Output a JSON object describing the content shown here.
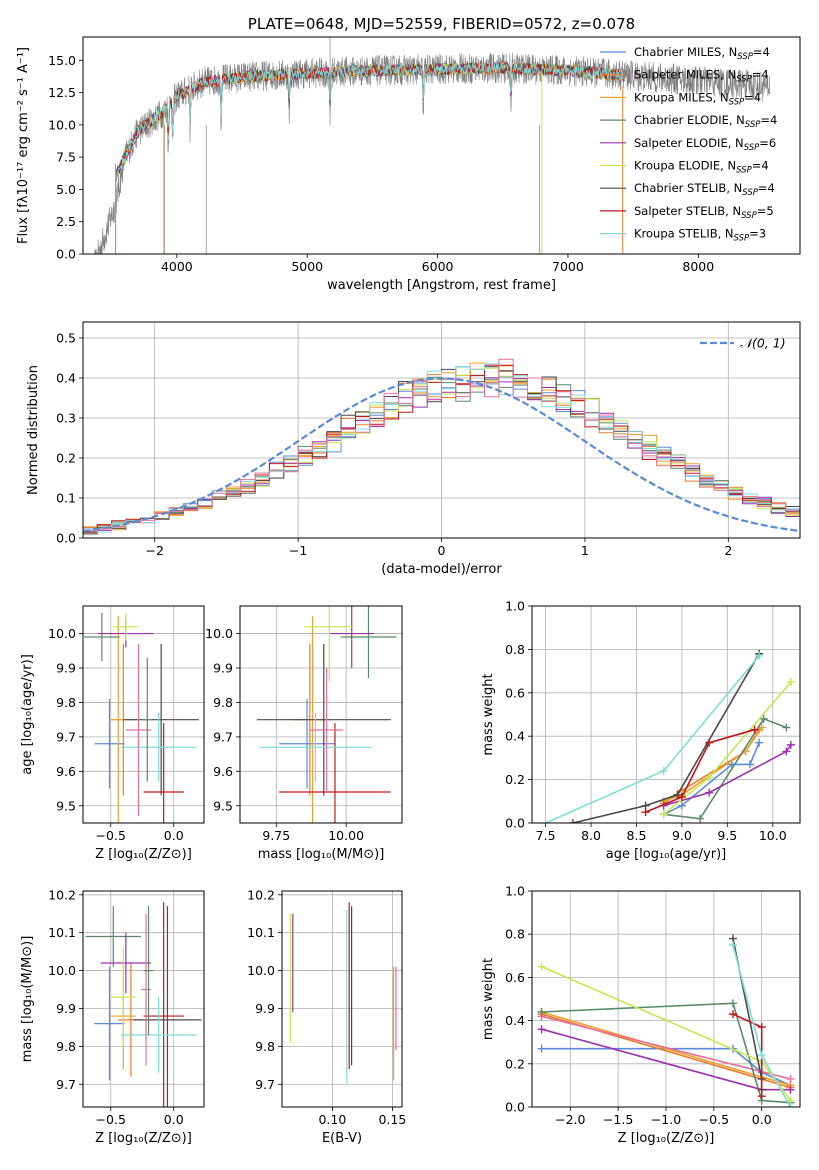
{
  "chart_data": [
    {
      "id": "spectrum",
      "type": "line",
      "title": "PLATE=0648, MJD=52559, FIBERID=0572, z=0.078",
      "xlabel": "wavelength [Angstrom, rest frame]",
      "ylabel": "Flux [fλ10⁻¹⁷ erg cm⁻² s⁻¹ A⁻¹]",
      "xlim": [
        3280,
        8780
      ],
      "ylim": [
        0,
        16.8
      ],
      "xticks": [
        "4000",
        "5000",
        "6000",
        "7000",
        "8000"
      ],
      "yticks": [
        "0.0",
        "2.5",
        "5.0",
        "7.5",
        "10.0",
        "12.5",
        "15.0"
      ],
      "legend_position": "right",
      "legend": [
        {
          "label": "Chabrier MILES, N",
          "sub": "SSP",
          "suffix": "=4",
          "color": "#5b8bd6"
        },
        {
          "label": "Salpeter MILES, N",
          "sub": "SSP",
          "suffix": "=4",
          "color": "#e87d2e"
        },
        {
          "label": "Kroupa MILES, N",
          "sub": "SSP",
          "suffix": "=4",
          "color": "#f0a030"
        },
        {
          "label": "Chabrier ELODIE, N",
          "sub": "SSP",
          "suffix": "=4",
          "color": "#5a8a6a"
        },
        {
          "label": "Salpeter ELODIE, N",
          "sub": "SSP",
          "suffix": "=6",
          "color": "#9b30b0"
        },
        {
          "label": "Kroupa ELODIE, N",
          "sub": "SSP",
          "suffix": "=4",
          "color": "#c8e650"
        },
        {
          "label": "Chabrier STELIB, N",
          "sub": "SSP",
          "suffix": "=4",
          "color": "#4a4a4a"
        },
        {
          "label": "Salpeter STELIB, N",
          "sub": "SSP",
          "suffix": "=5",
          "color": "#c01818"
        },
        {
          "label": "Kroupa STELIB, N",
          "sub": "SSP",
          "suffix": "=3",
          "color": "#80dcdc"
        }
      ],
      "data_color": "#808080",
      "model_range": [
        3530,
        7420
      ],
      "continuum": [
        [
          3530,
          6.0
        ],
        [
          3700,
          9.5
        ],
        [
          3900,
          11.0
        ],
        [
          4000,
          12.2
        ],
        [
          4200,
          13.3
        ],
        [
          4500,
          13.7
        ],
        [
          5000,
          14.0
        ],
        [
          5500,
          14.2
        ],
        [
          6000,
          14.3
        ],
        [
          6500,
          14.4
        ],
        [
          7000,
          14.2
        ],
        [
          7500,
          13.8
        ],
        [
          8000,
          13.4
        ],
        [
          8500,
          13.0
        ]
      ]
    },
    {
      "id": "histogram",
      "type": "histogram",
      "xlabel": "(data-model)/error",
      "ylabel": "Normed distribution",
      "xlim": [
        -2.5,
        2.5
      ],
      "ylim": [
        0,
        0.54
      ],
      "xticks": [
        "−2",
        "−1",
        "0",
        "1",
        "2"
      ],
      "yticks": [
        "0.0",
        "0.1",
        "0.2",
        "0.3",
        "0.4",
        "0.5"
      ],
      "bin_width": 0.1,
      "bin_start": -2.5,
      "legend": "𝒩(0, 1)",
      "legend_position": "upper right",
      "gauss_color": "#5b8bd6",
      "values": [
        0.022,
        0.025,
        0.03,
        0.04,
        0.05,
        0.057,
        0.065,
        0.075,
        0.085,
        0.1,
        0.115,
        0.13,
        0.145,
        0.163,
        0.183,
        0.205,
        0.225,
        0.248,
        0.27,
        0.29,
        0.31,
        0.33,
        0.35,
        0.365,
        0.378,
        0.39,
        0.395,
        0.4,
        0.4,
        0.398,
        0.392,
        0.382,
        0.368,
        0.352,
        0.333,
        0.313,
        0.292,
        0.27,
        0.248,
        0.226,
        0.205,
        0.183,
        0.163,
        0.145,
        0.13,
        0.115,
        0.1,
        0.087,
        0.076,
        0.066,
        0.056,
        0.048,
        0.041,
        0.035,
        0.03,
        0.025
      ]
    },
    {
      "id": "age-vs-Z",
      "type": "errorbar",
      "xlabel": "Z [log₁₀(Z/Z⊙)]",
      "ylabel": "age  [log₁₀(age/yr)]",
      "xlim": [
        -0.72,
        0.24
      ],
      "ylim": [
        9.45,
        10.08
      ],
      "xticks": [
        "−0.5",
        "0.0"
      ],
      "yticks": [
        "9.5",
        "9.6",
        "9.7",
        "9.8",
        "9.9",
        "10.0"
      ],
      "points": [
        {
          "x": -0.51,
          "y": 9.68,
          "xerr": 0.12,
          "yerr": 0.13,
          "color": "#5b8bd6"
        },
        {
          "x": -0.4,
          "y": 9.75,
          "xerr": 0.1,
          "yerr": 0.22,
          "color": "#e87d2e"
        },
        {
          "x": -0.44,
          "y": 9.75,
          "xerr": 0.06,
          "yerr": 0.3,
          "color": "#f0a030"
        },
        {
          "x": -0.57,
          "y": 9.99,
          "xerr": 0.14,
          "yerr": 0.07,
          "color": "#5a8a6a"
        },
        {
          "x": -0.38,
          "y": 10.0,
          "xerr": 0.22,
          "yerr": 0.04,
          "color": "#9b30b0"
        },
        {
          "x": -0.38,
          "y": 10.02,
          "xerr": 0.1,
          "yerr": 0.04,
          "color": "#c8e650"
        },
        {
          "x": -0.1,
          "y": 9.75,
          "xerr": 0.3,
          "yerr": 0.22,
          "color": "#4a4a4a"
        },
        {
          "x": -0.08,
          "y": 9.54,
          "xerr": 0.16,
          "yerr": 0.2,
          "color": "#c01818"
        },
        {
          "x": -0.12,
          "y": 9.67,
          "xerr": 0.3,
          "yerr": 0.1,
          "color": "#80dcdc"
        },
        {
          "x": -0.28,
          "y": 9.72,
          "xerr": 0.1,
          "yerr": 0.25,
          "color": "#e8709a"
        },
        {
          "x": -0.21,
          "y": 9.75,
          "xerr": 0.04,
          "yerr": 0.18,
          "color": "#5a8a6a"
        }
      ]
    },
    {
      "id": "age-vs-mass",
      "type": "errorbar",
      "xlabel": "mass [log₁₀(M/M⊙)]",
      "ylabel": "",
      "xlim": [
        9.62,
        10.2
      ],
      "ylim": [
        9.45,
        10.08
      ],
      "xticks": [
        "9.75",
        "10.00"
      ],
      "yticks": [
        "9.5",
        "9.6",
        "9.7",
        "9.8",
        "9.9",
        "10.0"
      ],
      "points": [
        {
          "x": 9.86,
          "y": 9.68,
          "xerr": 0.1,
          "yerr": 0.13,
          "color": "#5b8bd6"
        },
        {
          "x": 9.87,
          "y": 9.75,
          "xerr": 0.06,
          "yerr": 0.22,
          "color": "#e87d2e"
        },
        {
          "x": 9.88,
          "y": 9.75,
          "xerr": 0.04,
          "yerr": 0.3,
          "color": "#f0a030"
        },
        {
          "x": 10.08,
          "y": 9.99,
          "xerr": 0.1,
          "yerr": 0.12,
          "color": "#5a8a6a"
        },
        {
          "x": 10.02,
          "y": 10.0,
          "xerr": 0.08,
          "yerr": 0.1,
          "color": "#9b30b0"
        },
        {
          "x": 9.94,
          "y": 10.02,
          "xerr": 0.09,
          "yerr": 0.16,
          "color": "#c8e650"
        },
        {
          "x": 9.92,
          "y": 9.75,
          "xerr": 0.24,
          "yerr": 0.22,
          "color": "#4a4a4a"
        },
        {
          "x": 9.96,
          "y": 9.54,
          "xerr": 0.2,
          "yerr": 0.2,
          "color": "#c01818"
        },
        {
          "x": 9.89,
          "y": 9.67,
          "xerr": 0.2,
          "yerr": 0.1,
          "color": "#80dcdc"
        },
        {
          "x": 9.93,
          "y": 9.72,
          "xerr": 0.06,
          "yerr": 0.18,
          "color": "#e8709a"
        }
      ]
    },
    {
      "id": "massweight-vs-age",
      "type": "line",
      "xlabel": "age  [log₁₀(age/yr)]",
      "ylabel": "mass weight",
      "xlim": [
        7.35,
        10.3
      ],
      "ylim": [
        0,
        1
      ],
      "xticks": [
        "7.5",
        "8.0",
        "8.5",
        "9.0",
        "9.5",
        "10.0"
      ],
      "yticks": [
        "0.0",
        "0.2",
        "0.4",
        "0.6",
        "0.8",
        "1.0"
      ],
      "series": [
        {
          "color": "#5b8bd6",
          "x": [
            8.8,
            9.0,
            9.55,
            9.75,
            9.85
          ],
          "y": [
            0.04,
            0.08,
            0.27,
            0.27,
            0.37
          ]
        },
        {
          "color": "#e87d2e",
          "x": [
            8.8,
            9.0,
            9.7,
            9.85
          ],
          "y": [
            0.09,
            0.15,
            0.33,
            0.43
          ]
        },
        {
          "color": "#f0a030",
          "x": [
            8.8,
            9.0,
            9.7,
            9.88
          ],
          "y": [
            0.1,
            0.13,
            0.33,
            0.44
          ]
        },
        {
          "color": "#5a8a6a",
          "x": [
            8.8,
            9.2,
            9.9,
            10.15
          ],
          "y": [
            0.04,
            0.02,
            0.48,
            0.44
          ]
        },
        {
          "color": "#9b30b0",
          "x": [
            8.8,
            9.3,
            10.15,
            10.2
          ],
          "y": [
            0.08,
            0.14,
            0.33,
            0.36
          ]
        },
        {
          "color": "#c8e650",
          "x": [
            8.8,
            9.3,
            10.2
          ],
          "y": [
            0.04,
            0.21,
            0.65
          ]
        },
        {
          "color": "#4a4a4a",
          "x": [
            7.8,
            8.6,
            8.95,
            9.85
          ],
          "y": [
            0.0,
            0.08,
            0.13,
            0.78
          ]
        },
        {
          "color": "#c01818",
          "x": [
            8.6,
            9.0,
            9.3,
            9.8
          ],
          "y": [
            0.05,
            0.12,
            0.37,
            0.43
          ]
        },
        {
          "color": "#80dcdc",
          "x": [
            7.5,
            8.8,
            9.85
          ],
          "y": [
            0.0,
            0.24,
            0.77
          ]
        }
      ]
    },
    {
      "id": "mass-vs-Z",
      "type": "errorbar",
      "xlabel": "Z [log₁₀(Z/Z⊙)]",
      "ylabel": "mass [log₁₀(M/M⊙)]",
      "xlim": [
        -0.72,
        0.24
      ],
      "ylim": [
        9.64,
        10.21
      ],
      "xticks": [
        "−0.5",
        "0.0"
      ],
      "yticks": [
        "9.7",
        "9.8",
        "9.9",
        "10.0",
        "10.1",
        "10.2"
      ],
      "points": [
        {
          "x": -0.51,
          "y": 9.86,
          "xerr": 0.12,
          "yerr": 0.15,
          "color": "#5b8bd6"
        },
        {
          "x": -0.34,
          "y": 9.87,
          "xerr": 0.1,
          "yerr": 0.15,
          "color": "#e87d2e"
        },
        {
          "x": -0.4,
          "y": 9.88,
          "xerr": 0.1,
          "yerr": 0.14,
          "color": "#f0a030"
        },
        {
          "x": -0.48,
          "y": 10.09,
          "xerr": 0.22,
          "yerr": 0.08,
          "color": "#5a8a6a"
        },
        {
          "x": -0.38,
          "y": 10.02,
          "xerr": 0.2,
          "yerr": 0.08,
          "color": "#9b30b0"
        },
        {
          "x": -0.4,
          "y": 9.93,
          "xerr": 0.1,
          "yerr": 0.13,
          "color": "#c8e650"
        },
        {
          "x": -0.05,
          "y": 9.87,
          "xerr": 0.27,
          "yerr": 0.3,
          "color": "#4a4a4a"
        },
        {
          "x": -0.08,
          "y": 9.88,
          "xerr": 0.16,
          "yerr": 0.3,
          "color": "#c01818"
        },
        {
          "x": -0.12,
          "y": 9.83,
          "xerr": 0.3,
          "yerr": 0.1,
          "color": "#80dcdc"
        },
        {
          "x": -0.22,
          "y": 9.95,
          "xerr": 0.04,
          "yerr": 0.2,
          "color": "#e8709a"
        },
        {
          "x": -0.2,
          "y": 10.0,
          "xerr": 0.04,
          "yerr": 0.17,
          "color": "#5a8a6a"
        }
      ]
    },
    {
      "id": "mass-vs-EBV",
      "type": "errorbar",
      "xlabel": "E(B-V)",
      "ylabel": "",
      "xlim": [
        0.058,
        0.158
      ],
      "ylim": [
        9.64,
        10.21
      ],
      "xticks": [
        "0.10",
        "0.15"
      ],
      "yticks": [
        "9.7",
        "9.8",
        "9.9",
        "10.0",
        "10.1",
        "10.2"
      ],
      "points": [
        {
          "x": 0.065,
          "y": 9.98,
          "yerr": 0.17,
          "color": "#c8e650"
        },
        {
          "x": 0.067,
          "y": 10.02,
          "yerr": 0.13,
          "color": "#9b30b0"
        },
        {
          "x": 0.112,
          "y": 9.93,
          "yerr": 0.23,
          "color": "#80dcdc"
        },
        {
          "x": 0.114,
          "y": 9.96,
          "yerr": 0.22,
          "color": "#c01818"
        },
        {
          "x": 0.116,
          "y": 9.96,
          "yerr": 0.21,
          "color": "#4a4a4a"
        },
        {
          "x": 0.151,
          "y": 9.86,
          "yerr": 0.15,
          "color": "#f0a030"
        },
        {
          "x": 0.153,
          "y": 9.9,
          "yerr": 0.11,
          "color": "#e8709a"
        }
      ]
    },
    {
      "id": "massweight-vs-Z",
      "type": "line",
      "xlabel": "Z [log₁₀(Z/Z⊙)]",
      "ylabel": "mass weight",
      "xlim": [
        -2.4,
        0.4
      ],
      "ylim": [
        0,
        1
      ],
      "xticks": [
        "−2.0",
        "−1.5",
        "−1.0",
        "−0.5",
        "0.0"
      ],
      "yticks": [
        "0.0",
        "0.2",
        "0.4",
        "0.6",
        "0.8",
        "1.0"
      ],
      "series": [
        {
          "color": "#5b8bd6",
          "x": [
            -2.3,
            -0.3,
            0.0,
            0.3
          ],
          "y": [
            0.27,
            0.27,
            0.16,
            0.1
          ]
        },
        {
          "color": "#e87d2e",
          "x": [
            -2.3,
            0.3
          ],
          "y": [
            0.43,
            0.09
          ]
        },
        {
          "color": "#f0a030",
          "x": [
            -2.3,
            0.3
          ],
          "y": [
            0.44,
            0.1
          ]
        },
        {
          "color": "#e8709a",
          "x": [
            -2.3,
            0.3
          ],
          "y": [
            0.42,
            0.13
          ]
        },
        {
          "color": "#5a8a6a",
          "x": [
            -2.3,
            -0.3,
            0.0,
            0.3
          ],
          "y": [
            0.44,
            0.48,
            0.03,
            0.02
          ]
        },
        {
          "color": "#9b30b0",
          "x": [
            -2.3,
            0.0,
            0.3
          ],
          "y": [
            0.36,
            0.08,
            0.08
          ]
        },
        {
          "color": "#c8e650",
          "x": [
            -2.3,
            0.0,
            0.3
          ],
          "y": [
            0.65,
            0.21,
            0.03
          ]
        },
        {
          "color": "#4a4a4a",
          "x": [
            -0.3,
            0.0,
            0.0
          ],
          "y": [
            0.78,
            0.13,
            0.08
          ]
        },
        {
          "color": "#c01818",
          "x": [
            -0.3,
            0.0,
            0.0
          ],
          "y": [
            0.43,
            0.37,
            0.05
          ]
        },
        {
          "color": "#80dcdc",
          "x": [
            -0.3,
            0.0,
            0.3
          ],
          "y": [
            0.75,
            0.24,
            0.0
          ]
        }
      ]
    }
  ]
}
